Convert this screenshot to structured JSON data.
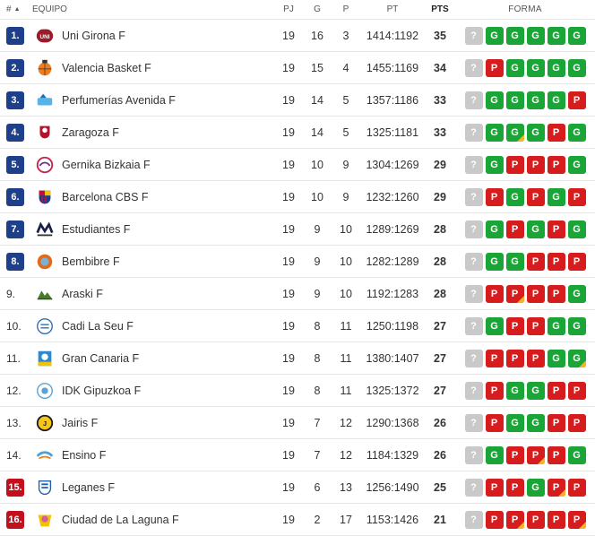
{
  "header": {
    "pos": "#",
    "team": "EQUIPO",
    "pj": "PJ",
    "g": "G",
    "p": "P",
    "pt": "PT",
    "pts": "PTS",
    "forma": "FORMA",
    "sort_icon": "sort-up-icon"
  },
  "colors": {
    "win": "#1aa637",
    "loss": "#d61c1c",
    "unknown": "#c9c9c9",
    "qualify": "#1e3f8a",
    "relegation": "#c40f1c",
    "flag": "#f5b325"
  },
  "rows": [
    {
      "pos": "1.",
      "zone": "blue",
      "team": "Uni Girona F",
      "logo": "uni-girona-logo",
      "pj": "19",
      "g": "16",
      "p": "3",
      "pt": "1414:1192",
      "pts": "35",
      "forma": [
        "?",
        "G",
        "G",
        "G",
        "G",
        "G"
      ],
      "flags": [
        false,
        false,
        false,
        false,
        false,
        false
      ]
    },
    {
      "pos": "2.",
      "zone": "blue",
      "team": "Valencia Basket F",
      "logo": "valencia-basket-logo",
      "pj": "19",
      "g": "15",
      "p": "4",
      "pt": "1455:1169",
      "pts": "34",
      "forma": [
        "?",
        "P",
        "G",
        "G",
        "G",
        "G"
      ],
      "flags": [
        false,
        false,
        false,
        false,
        false,
        false
      ]
    },
    {
      "pos": "3.",
      "zone": "blue",
      "team": "Perfumerías Avenida F",
      "logo": "perfumerias-avenida-logo",
      "pj": "19",
      "g": "14",
      "p": "5",
      "pt": "1357:1186",
      "pts": "33",
      "forma": [
        "?",
        "G",
        "G",
        "G",
        "G",
        "P"
      ],
      "flags": [
        false,
        false,
        false,
        false,
        false,
        false
      ]
    },
    {
      "pos": "4.",
      "zone": "blue",
      "team": "Zaragoza F",
      "logo": "zaragoza-logo",
      "pj": "19",
      "g": "14",
      "p": "5",
      "pt": "1325:1181",
      "pts": "33",
      "forma": [
        "?",
        "G",
        "G",
        "G",
        "P",
        "G"
      ],
      "flags": [
        false,
        false,
        true,
        false,
        false,
        false
      ]
    },
    {
      "pos": "5.",
      "zone": "blue",
      "team": "Gernika Bizkaia F",
      "logo": "gernika-bizkaia-logo",
      "pj": "19",
      "g": "10",
      "p": "9",
      "pt": "1304:1269",
      "pts": "29",
      "forma": [
        "?",
        "G",
        "P",
        "P",
        "P",
        "G"
      ],
      "flags": [
        false,
        false,
        false,
        false,
        false,
        false
      ]
    },
    {
      "pos": "6.",
      "zone": "blue",
      "team": "Barcelona CBS F",
      "logo": "barcelona-cbs-logo",
      "pj": "19",
      "g": "10",
      "p": "9",
      "pt": "1232:1260",
      "pts": "29",
      "forma": [
        "?",
        "P",
        "G",
        "P",
        "G",
        "P"
      ],
      "flags": [
        false,
        false,
        false,
        false,
        false,
        false
      ]
    },
    {
      "pos": "7.",
      "zone": "blue",
      "team": "Estudiantes F",
      "logo": "estudiantes-logo",
      "pj": "19",
      "g": "9",
      "p": "10",
      "pt": "1289:1269",
      "pts": "28",
      "forma": [
        "?",
        "G",
        "P",
        "G",
        "P",
        "G"
      ],
      "flags": [
        false,
        false,
        false,
        false,
        false,
        false
      ]
    },
    {
      "pos": "8.",
      "zone": "blue",
      "team": "Bembibre F",
      "logo": "bembibre-logo",
      "pj": "19",
      "g": "9",
      "p": "10",
      "pt": "1282:1289",
      "pts": "28",
      "forma": [
        "?",
        "G",
        "G",
        "P",
        "P",
        "P"
      ],
      "flags": [
        false,
        false,
        false,
        false,
        false,
        false
      ]
    },
    {
      "pos": "9.",
      "zone": "none",
      "team": "Araski F",
      "logo": "araski-logo",
      "pj": "19",
      "g": "9",
      "p": "10",
      "pt": "1192:1283",
      "pts": "28",
      "forma": [
        "?",
        "P",
        "P",
        "P",
        "P",
        "G"
      ],
      "flags": [
        false,
        false,
        true,
        false,
        false,
        false
      ]
    },
    {
      "pos": "10.",
      "zone": "none",
      "team": "Cadi La Seu F",
      "logo": "cadi-la-seu-logo",
      "pj": "19",
      "g": "8",
      "p": "11",
      "pt": "1250:1198",
      "pts": "27",
      "forma": [
        "?",
        "G",
        "P",
        "P",
        "G",
        "G"
      ],
      "flags": [
        false,
        false,
        false,
        false,
        false,
        false
      ]
    },
    {
      "pos": "11.",
      "zone": "none",
      "team": "Gran Canaria F",
      "logo": "gran-canaria-logo",
      "pj": "19",
      "g": "8",
      "p": "11",
      "pt": "1380:1407",
      "pts": "27",
      "forma": [
        "?",
        "P",
        "P",
        "P",
        "G",
        "G"
      ],
      "flags": [
        false,
        false,
        false,
        false,
        false,
        true
      ]
    },
    {
      "pos": "12.",
      "zone": "none",
      "team": "IDK Gipuzkoa F",
      "logo": "idk-gipuzkoa-logo",
      "pj": "19",
      "g": "8",
      "p": "11",
      "pt": "1325:1372",
      "pts": "27",
      "forma": [
        "?",
        "P",
        "G",
        "G",
        "P",
        "P"
      ],
      "flags": [
        false,
        false,
        false,
        false,
        false,
        false
      ]
    },
    {
      "pos": "13.",
      "zone": "none",
      "team": "Jairis F",
      "logo": "jairis-logo",
      "pj": "19",
      "g": "7",
      "p": "12",
      "pt": "1290:1368",
      "pts": "26",
      "forma": [
        "?",
        "P",
        "G",
        "G",
        "P",
        "P"
      ],
      "flags": [
        false,
        false,
        false,
        false,
        false,
        false
      ]
    },
    {
      "pos": "14.",
      "zone": "none",
      "team": "Ensino F",
      "logo": "ensino-logo",
      "pj": "19",
      "g": "7",
      "p": "12",
      "pt": "1184:1329",
      "pts": "26",
      "forma": [
        "?",
        "G",
        "P",
        "P",
        "P",
        "G"
      ],
      "flags": [
        false,
        false,
        false,
        true,
        false,
        false
      ]
    },
    {
      "pos": "15.",
      "zone": "red",
      "team": "Leganes F",
      "logo": "leganes-logo",
      "pj": "19",
      "g": "6",
      "p": "13",
      "pt": "1256:1490",
      "pts": "25",
      "forma": [
        "?",
        "P",
        "P",
        "G",
        "P",
        "P"
      ],
      "flags": [
        false,
        false,
        false,
        false,
        true,
        false
      ]
    },
    {
      "pos": "16.",
      "zone": "red",
      "team": "Ciudad de La Laguna F",
      "logo": "ciudad-la-laguna-logo",
      "pj": "19",
      "g": "2",
      "p": "17",
      "pt": "1153:1426",
      "pts": "21",
      "forma": [
        "?",
        "P",
        "P",
        "P",
        "P",
        "P"
      ],
      "flags": [
        false,
        false,
        true,
        false,
        false,
        true
      ]
    }
  ]
}
